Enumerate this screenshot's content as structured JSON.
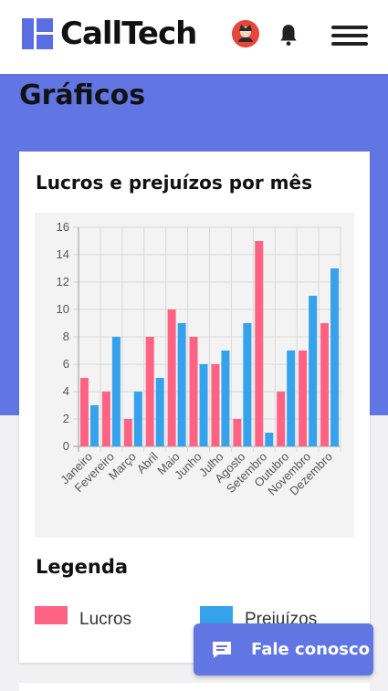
{
  "header": {
    "logo_text": "CallTech",
    "logo_icon": "calltech-logo-icon",
    "avatar_icon": "user-avatar-icon",
    "notifications_icon": "bell-icon",
    "menu_icon": "hamburger-menu-icon"
  },
  "page": {
    "title": "Gráficos"
  },
  "card": {
    "title": "Lucros e prejuízos por mês"
  },
  "legend": {
    "title": "Legenda",
    "items": [
      {
        "label": "Lucros",
        "color": "#ff6384"
      },
      {
        "label": "Prejuízos",
        "color": "#36a2eb"
      }
    ]
  },
  "contact_button": {
    "label": "Fale conosco",
    "icon": "chat-icon"
  },
  "colors": {
    "accent": "#6175e3",
    "lucros": "#ff6384",
    "prejuizos": "#36a2eb"
  },
  "chart_data": {
    "type": "bar",
    "title": "",
    "xlabel": "",
    "ylabel": "",
    "categories": [
      "Janeiro",
      "Fevereiro",
      "Março",
      "Abril",
      "Maio",
      "Junho",
      "Julho",
      "Agosto",
      "Setembro",
      "Outubro",
      "Novembro",
      "Dezembro"
    ],
    "series": [
      {
        "values": [
          5,
          4,
          2,
          8,
          10,
          8,
          6,
          2,
          15,
          4,
          7,
          9
        ],
        "color": "#ff6384"
      },
      {
        "values": [
          3,
          8,
          4,
          5,
          9,
          6,
          7,
          9,
          1,
          7,
          11,
          13
        ],
        "color": "#36a2eb"
      }
    ],
    "ylim": [
      0,
      16
    ],
    "yticks": [
      0,
      2,
      4,
      6,
      8,
      10,
      12,
      14,
      16
    ],
    "grid": true,
    "legend": "below"
  }
}
